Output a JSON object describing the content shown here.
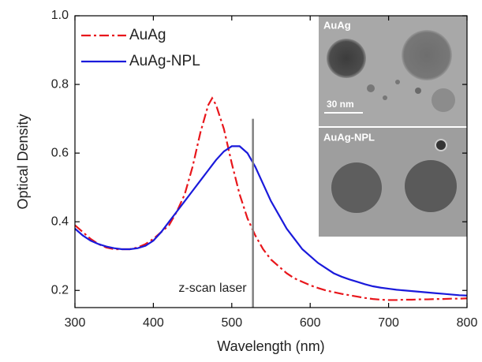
{
  "chart_data": {
    "type": "line",
    "xlabel": "Wavelength (nm)",
    "ylabel": "Optical Density",
    "x": [
      300,
      310,
      320,
      330,
      340,
      350,
      360,
      370,
      380,
      390,
      400,
      410,
      420,
      430,
      440,
      450,
      460,
      470,
      475,
      480,
      490,
      500,
      510,
      520,
      530,
      540,
      550,
      560,
      570,
      580,
      590,
      600,
      610,
      620,
      630,
      640,
      650,
      660,
      670,
      680,
      690,
      700,
      710,
      720,
      730,
      740,
      750,
      760,
      770,
      780,
      790,
      800
    ],
    "series": [
      {
        "name": "AuAg",
        "color": "#e8161b",
        "dash": "dashdot",
        "values": [
          0.39,
          0.37,
          0.35,
          0.335,
          0.325,
          0.32,
          0.32,
          0.32,
          0.325,
          0.335,
          0.35,
          0.37,
          0.39,
          0.43,
          0.48,
          0.56,
          0.66,
          0.74,
          0.76,
          0.74,
          0.67,
          0.57,
          0.48,
          0.41,
          0.36,
          0.32,
          0.29,
          0.27,
          0.25,
          0.235,
          0.225,
          0.215,
          0.207,
          0.2,
          0.195,
          0.19,
          0.186,
          0.182,
          0.178,
          0.175,
          0.173,
          0.172,
          0.172,
          0.173,
          0.173,
          0.174,
          0.174,
          0.175,
          0.175,
          0.176,
          0.176,
          0.177
        ]
      },
      {
        "name": "AuAg-NPL",
        "color": "#1a1adb",
        "dash": "solid",
        "values": [
          0.38,
          0.36,
          0.345,
          0.335,
          0.328,
          0.323,
          0.32,
          0.32,
          0.323,
          0.33,
          0.345,
          0.37,
          0.4,
          0.43,
          0.46,
          0.49,
          0.52,
          0.55,
          0.565,
          0.58,
          0.605,
          0.62,
          0.62,
          0.6,
          0.56,
          0.51,
          0.46,
          0.42,
          0.38,
          0.35,
          0.32,
          0.3,
          0.28,
          0.265,
          0.25,
          0.24,
          0.232,
          0.225,
          0.218,
          0.212,
          0.208,
          0.205,
          0.202,
          0.2,
          0.198,
          0.196,
          0.194,
          0.192,
          0.19,
          0.188,
          0.186,
          0.185
        ]
      }
    ],
    "xlim": [
      300,
      800
    ],
    "xticks": [
      300,
      400,
      500,
      600,
      700,
      800
    ],
    "ylim": [
      0.15,
      1.0
    ],
    "yticks": [
      0.2,
      0.4,
      0.6,
      0.8,
      {
        "value": 1.0,
        "label": "1.0"
      }
    ],
    "legend": "upper left",
    "annotation": {
      "text": "z-scan laser",
      "x": 527,
      "y_top": 0.7,
      "color": "#808080"
    },
    "inset": {
      "top_label": "AuAg",
      "scale_label": "30 nm",
      "bottom_label": "AuAg-NPL"
    }
  }
}
